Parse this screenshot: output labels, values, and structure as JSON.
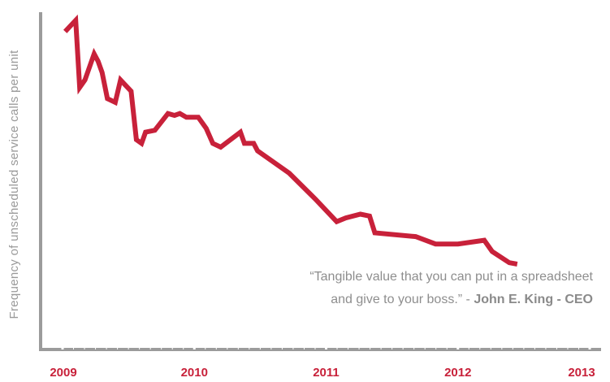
{
  "colors": {
    "line": "#c8213a",
    "axis": "#9b9b9b",
    "tick_label": "#c8213a",
    "text": "#8e8e8e"
  },
  "quote": {
    "line1": "“Tangible value that you can put in a spreadsheet",
    "line2_text": "and give to your boss.” - ",
    "author": "John E. King - CEO"
  },
  "chart_data": {
    "type": "line",
    "title": "",
    "xlabel": "",
    "ylabel": "Frequency of unscheduled service calls per unit",
    "xlim": [
      2009.0,
      2013.0
    ],
    "x_ticks": [
      "2009",
      "2010",
      "2011",
      "2012",
      "2013"
    ],
    "grid": false,
    "legend": "none",
    "series": [
      {
        "values": [
          [
            2009.02,
            100
          ],
          [
            2009.1,
            103
          ],
          [
            2009.13,
            85
          ],
          [
            2009.17,
            87
          ],
          [
            2009.24,
            94
          ],
          [
            2009.27,
            92
          ],
          [
            2009.3,
            89
          ],
          [
            2009.34,
            82
          ],
          [
            2009.4,
            81
          ],
          [
            2009.44,
            87
          ],
          [
            2009.52,
            84
          ],
          [
            2009.56,
            71
          ],
          [
            2009.6,
            70
          ],
          [
            2009.63,
            73
          ],
          [
            2009.7,
            73.5
          ],
          [
            2009.8,
            78
          ],
          [
            2009.85,
            77.5
          ],
          [
            2009.89,
            78
          ],
          [
            2009.94,
            77
          ],
          [
            2010.03,
            77
          ],
          [
            2010.09,
            74
          ],
          [
            2010.14,
            70
          ],
          [
            2010.2,
            69
          ],
          [
            2010.35,
            73
          ],
          [
            2010.38,
            70
          ],
          [
            2010.45,
            70
          ],
          [
            2010.48,
            68
          ],
          [
            2010.72,
            62
          ],
          [
            2010.92,
            55
          ],
          [
            2011.08,
            49
          ],
          [
            2011.15,
            50
          ],
          [
            2011.26,
            51
          ],
          [
            2011.33,
            50.5
          ],
          [
            2011.37,
            46
          ],
          [
            2011.68,
            45
          ],
          [
            2011.83,
            43
          ],
          [
            2012.0,
            43
          ],
          [
            2012.2,
            44
          ],
          [
            2012.26,
            41
          ],
          [
            2012.39,
            38
          ],
          [
            2012.45,
            37.6
          ]
        ]
      }
    ]
  }
}
